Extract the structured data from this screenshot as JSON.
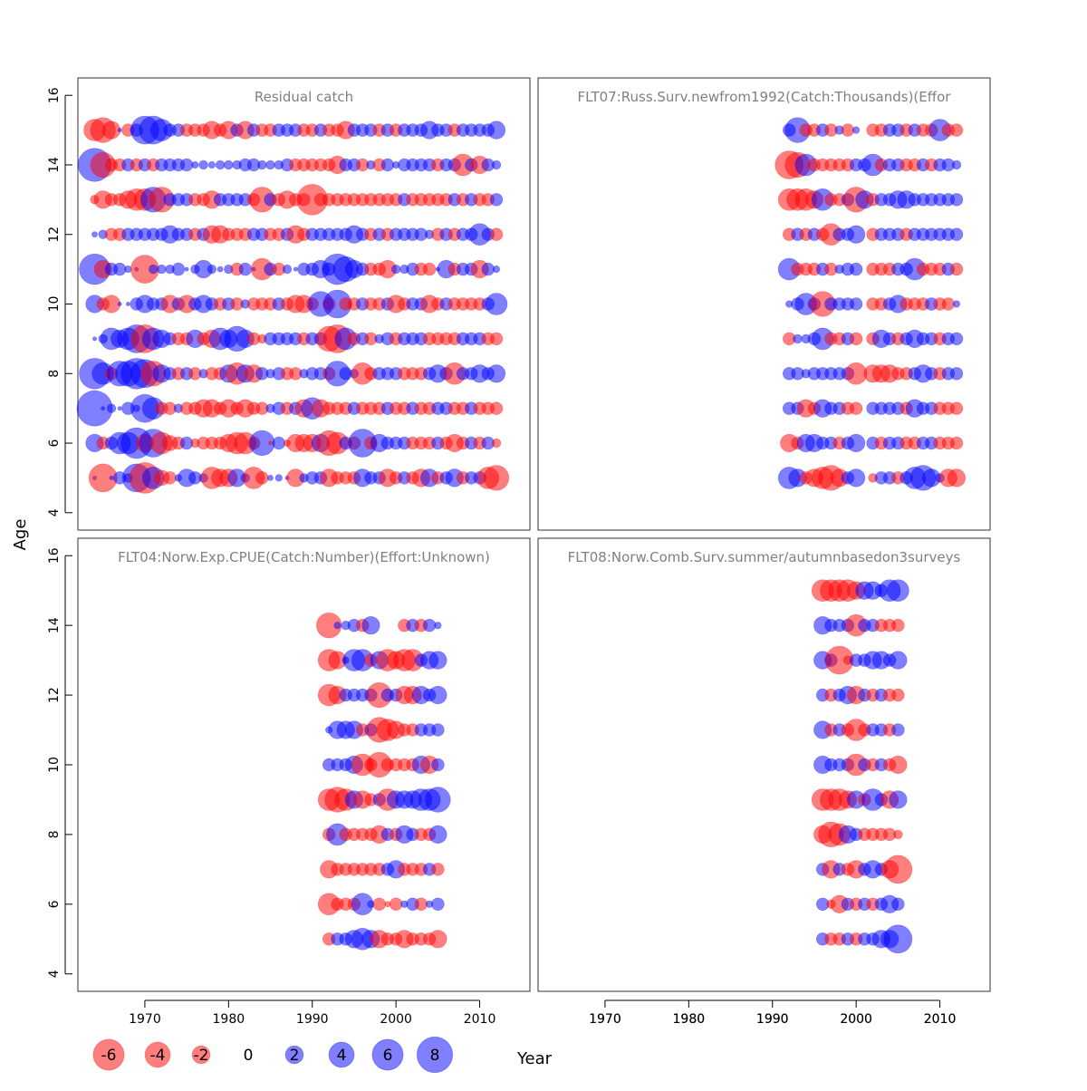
{
  "figure": {
    "ylabel": "Age",
    "xlabel": "Year",
    "colors": {
      "positive": "#0000ff",
      "negative": "#ff0000",
      "bubble_alpha": 0.5,
      "panel_title": "#808080"
    }
  },
  "legend": {
    "items": [
      {
        "label": "-6",
        "value": -6
      },
      {
        "label": "-4",
        "value": -4
      },
      {
        "label": "-2",
        "value": -2
      },
      {
        "label": "0",
        "value": 0
      },
      {
        "label": "2",
        "value": 2
      },
      {
        "label": "4",
        "value": 4
      },
      {
        "label": "6",
        "value": 6
      },
      {
        "label": "8",
        "value": 8
      }
    ]
  },
  "chart_data": [
    {
      "type": "scatter",
      "title": "Residual catch",
      "xlabel": "Year",
      "ylabel": "Age",
      "xlim": [
        1962,
        2016
      ],
      "ylim": [
        3.5,
        16.5
      ],
      "xticks": [],
      "yticks": [
        "4",
        "6",
        "8",
        "10",
        "12",
        "14",
        "16"
      ],
      "years": [
        1964,
        1965,
        1966,
        1967,
        1968,
        1969,
        1970,
        1971,
        1972,
        1973,
        1974,
        1975,
        1976,
        1977,
        1978,
        1979,
        1980,
        1981,
        1982,
        1983,
        1984,
        1985,
        1986,
        1987,
        1988,
        1989,
        1990,
        1991,
        1992,
        1993,
        1994,
        1995,
        1996,
        1997,
        1998,
        1999,
        2000,
        2001,
        2002,
        2003,
        2004,
        2005,
        2006,
        2007,
        2008,
        2009,
        2010,
        2011,
        2012
      ],
      "ages": [
        5,
        6,
        7,
        8,
        9,
        10,
        11,
        12,
        13,
        14,
        15
      ],
      "residuals": [
        [
          0.1,
          -5,
          0.1,
          1,
          0.5,
          5,
          -6,
          3,
          -1.5,
          -1,
          0.3,
          2,
          1,
          0.5,
          -3,
          -2,
          -2,
          2,
          0.5,
          -3,
          -1,
          0.2,
          0.3,
          0.1,
          -2,
          0.5,
          1,
          1,
          -2,
          -1,
          -1,
          -1,
          2,
          1,
          1,
          -2,
          -1,
          1,
          -1,
          -2,
          2,
          -1,
          1,
          2,
          -1,
          1,
          1,
          -3,
          -4
        ],
        [
          2,
          -1,
          1,
          3,
          3,
          6,
          -2,
          5,
          -3,
          -1.5,
          -1,
          1,
          -0.5,
          -1,
          -1,
          -1,
          -2,
          -3,
          -3,
          -1,
          4,
          -0.1,
          1,
          -0.3,
          -2,
          -2,
          -2,
          2,
          -4,
          -3,
          1,
          -1,
          5,
          -1,
          2,
          1,
          1,
          1,
          -1,
          -1,
          -1,
          1,
          -1,
          -2,
          -1,
          1,
          -1,
          1,
          -0.5
        ],
        [
          8,
          0.1,
          0.5,
          0.1,
          1,
          0.3,
          5,
          3,
          -1,
          -1,
          0.5,
          -1,
          -1,
          -2,
          -2,
          -1,
          -2,
          -1,
          -2,
          -1,
          -1,
          0.5,
          1,
          -1,
          1,
          -2,
          3,
          -2,
          -1,
          -1,
          -1,
          1,
          -1,
          -1,
          -1,
          1,
          -1,
          -1,
          1,
          -1,
          -1,
          1,
          1,
          -1,
          -1,
          1,
          -1,
          -1,
          -1
        ],
        [
          6,
          3,
          -1,
          4,
          4,
          6,
          5,
          -4,
          2,
          1,
          -1,
          1,
          -1,
          0.5,
          -1,
          -1,
          2,
          -3,
          2,
          -2,
          1,
          0.5,
          1,
          -1,
          -1,
          0.5,
          1,
          1,
          -1,
          4,
          1,
          0.5,
          -3,
          -1,
          1,
          1,
          1,
          -1,
          -1,
          -1,
          1,
          2,
          1,
          -3,
          1,
          1,
          2,
          1,
          2
        ],
        [
          0.1,
          0.5,
          3,
          2,
          3,
          5,
          -5,
          3,
          2,
          1,
          -1,
          -1,
          2,
          -1,
          -2,
          3,
          2,
          4,
          2,
          -1,
          -0.5,
          1,
          1,
          1,
          1,
          -1,
          1,
          1,
          -4,
          -5,
          3,
          -1,
          1,
          -1,
          0.5,
          1,
          -1,
          1,
          1,
          1,
          -1,
          -1,
          -1,
          -1,
          1,
          1,
          1,
          -1,
          -1
        ],
        [
          2,
          -1,
          -2,
          0.1,
          0.1,
          1,
          2,
          1,
          1,
          -2,
          1,
          -2,
          1,
          2,
          1,
          -1,
          1,
          -1,
          0.5,
          -1,
          -1,
          -1,
          1,
          -1,
          -2,
          -2,
          -1,
          4,
          -1,
          5,
          -1,
          -1,
          1,
          -1,
          -1,
          1,
          -2,
          -1,
          1,
          1,
          -2,
          -1,
          1,
          -1,
          -1,
          -1,
          -1,
          1,
          3
        ],
        [
          6,
          -2,
          1,
          1,
          0.3,
          0.1,
          -5,
          0.5,
          0.5,
          0.5,
          1,
          0.1,
          0.5,
          2,
          0.5,
          0.2,
          0.5,
          -1,
          1,
          0.1,
          -3,
          1,
          -1,
          0.5,
          0.1,
          1,
          1,
          2,
          1,
          6,
          4,
          2,
          1,
          -1,
          -1,
          -2,
          0.5,
          0.5,
          1,
          -1,
          -1,
          0.1,
          2,
          -1,
          1,
          1,
          -2,
          1,
          0.3
        ],
        [
          0.2,
          0.5,
          -1,
          -1,
          1,
          1,
          1,
          1,
          1,
          2,
          1,
          1,
          -1,
          1,
          -2,
          -2,
          -1,
          -1,
          -1,
          1,
          1,
          -1,
          -1,
          1,
          -2,
          -1,
          1,
          1,
          1,
          1,
          1,
          2,
          1,
          -1,
          1,
          -1,
          1,
          1,
          1,
          1,
          0.5,
          -1,
          1,
          -1,
          1,
          1,
          3,
          1,
          -1
        ],
        [
          -0.5,
          -2,
          -1,
          -1,
          -2,
          -3,
          -3,
          4,
          -4,
          1,
          1,
          1,
          -1,
          -1,
          -2,
          1,
          1,
          1,
          1,
          -1,
          -4,
          1,
          -1,
          -2,
          -1,
          -1,
          -6,
          -1,
          -1,
          -1,
          -1,
          -1,
          -1,
          -1,
          -1,
          -1,
          -1,
          1,
          -1,
          -1,
          -1,
          -1,
          -1,
          1,
          -1,
          1,
          -1,
          -1,
          1
        ],
        [
          7,
          -4,
          -1,
          -1,
          1,
          -1,
          1,
          -1,
          1,
          1,
          1,
          1,
          0.3,
          0.5,
          0.3,
          0.5,
          0.5,
          0.5,
          1,
          1,
          0.5,
          0.5,
          0.5,
          1,
          -1,
          -1,
          -1,
          -1,
          -1,
          -2,
          1,
          1,
          -1,
          0.5,
          -1,
          1,
          0.3,
          1,
          1,
          1,
          1,
          -1,
          1,
          1,
          -3,
          1,
          -2,
          1,
          0.5
        ],
        [
          -3,
          -4,
          -2,
          0.1,
          -1,
          1,
          5,
          5,
          3,
          1,
          1,
          -1,
          -1,
          -1,
          -2,
          -1,
          -2,
          1,
          -2,
          1,
          -1,
          -1,
          1,
          1,
          1,
          -1,
          -1,
          1,
          -1,
          -1,
          -2,
          1,
          1,
          1,
          -1,
          1,
          -1,
          1,
          1,
          1,
          2,
          1,
          1,
          -1,
          1,
          1,
          1,
          1,
          2
        ]
      ]
    },
    {
      "type": "scatter",
      "title": "FLT07:Russ.Surv.newfrom1992(Catch:Thousands)(Effor",
      "xlabel": "Year",
      "ylabel": "Age",
      "xlim": [
        1962,
        2016
      ],
      "ylim": [
        3.5,
        16.5
      ],
      "xticks": [
        "1970",
        "1980",
        "1990",
        "2000",
        "2010"
      ],
      "yticks": [],
      "years": [
        1992,
        1993,
        1994,
        1995,
        1996,
        1997,
        1998,
        1999,
        2000,
        2001,
        2002,
        2003,
        2004,
        2005,
        2006,
        2007,
        2008,
        2009,
        2010,
        2011,
        2012
      ],
      "ages": [
        5,
        6,
        7,
        8,
        9,
        10,
        11,
        12,
        13,
        14,
        15
      ],
      "residuals": [
        [
          3,
          2,
          -1,
          -2,
          -3,
          -4,
          -2,
          1,
          2,
          null,
          -0.5,
          1,
          1,
          -1,
          1,
          3,
          4,
          2,
          0.5,
          -2,
          -2
        ],
        [
          -2,
          -1,
          2,
          2,
          1,
          1,
          -1,
          1,
          2,
          null,
          1,
          -1,
          1,
          1,
          -1,
          -1,
          1,
          1,
          -1,
          -1,
          -1
        ],
        [
          1,
          1,
          -2,
          -1,
          2,
          1,
          1,
          -1,
          -1,
          null,
          1,
          1,
          1,
          1,
          -1,
          2,
          1,
          1,
          -1,
          -1,
          -1
        ],
        [
          1,
          1,
          0.5,
          1,
          1,
          1,
          1,
          1,
          -3,
          null,
          -2,
          -2,
          -2,
          -1,
          -1,
          1,
          2,
          1,
          -1,
          1,
          1
        ],
        [
          -1,
          0.5,
          0.5,
          1,
          3,
          -1,
          -1,
          1,
          -1,
          null,
          -1,
          2,
          1,
          -1,
          1,
          2,
          1,
          1,
          -1,
          1,
          1
        ],
        [
          0.3,
          1,
          3,
          1,
          -4,
          1,
          1,
          1,
          1,
          null,
          -1,
          -1,
          1,
          2,
          -1,
          -1,
          -1,
          1,
          -1,
          -1,
          0.3
        ],
        [
          3,
          -1,
          -1,
          -1,
          1,
          -1,
          0.5,
          1,
          1,
          null,
          -1,
          -1,
          -1,
          1,
          1,
          3,
          -1,
          -1,
          -1,
          1,
          -1
        ],
        [
          -1,
          1,
          -1,
          1,
          -1,
          -3,
          1,
          1,
          2,
          null,
          -1,
          1,
          1,
          1,
          -1,
          1,
          1,
          1,
          1,
          1,
          1
        ],
        [
          -3,
          -3,
          -3,
          -2,
          3,
          -1,
          -1,
          1,
          -4,
          2,
          -1,
          1,
          1,
          2,
          2,
          1,
          1,
          1,
          1,
          1,
          1
        ],
        [
          -5,
          -4,
          3,
          -1,
          -1,
          -1,
          -1,
          -1,
          1,
          1,
          3,
          -1,
          1,
          1,
          -1,
          -1,
          1,
          -1,
          1,
          1,
          0.5
        ],
        [
          1,
          4,
          -1,
          -1,
          1,
          -1,
          0.5,
          -1,
          0.3,
          null,
          -1,
          -1,
          1,
          1,
          -1,
          1,
          -1,
          -1,
          3,
          -1,
          -1
        ]
      ]
    },
    {
      "type": "scatter",
      "title": "FLT04:Norw.Exp.CPUE(Catch:Number)(Effort:Unknown)",
      "xlabel": "Year",
      "ylabel": "Age",
      "xlim": [
        1962,
        2016
      ],
      "ylim": [
        3.5,
        16.5
      ],
      "xticks": [
        "1970",
        "1980",
        "1990",
        "2000",
        "2010"
      ],
      "yticks": [
        "4",
        "6",
        "8",
        "10",
        "12",
        "14",
        "16"
      ],
      "years": [
        1992,
        1993,
        1994,
        1995,
        1996,
        1997,
        1998,
        1999,
        2000,
        2001,
        2002,
        2003,
        2004,
        2005
      ],
      "ages": [
        5,
        6,
        7,
        8,
        9,
        10,
        11,
        12,
        13,
        14
      ],
      "residuals": [
        [
          -1,
          1,
          1,
          2,
          3,
          2,
          -2,
          -1,
          -1,
          -2,
          -1,
          -1,
          -1,
          -2
        ],
        [
          -3,
          -1,
          -1,
          -1,
          3,
          0.3,
          -1,
          -0.2,
          -1,
          0.3,
          1,
          -1,
          0.3,
          1
        ],
        [
          -2,
          -1,
          -1,
          -1,
          -1,
          -1,
          -1,
          1,
          2,
          -1,
          -1,
          -1,
          1,
          -1
        ],
        [
          -1,
          3,
          -1,
          -1,
          -1,
          -1,
          -2,
          1,
          -1,
          2,
          1,
          -1,
          -1,
          2
        ],
        [
          -3,
          -4,
          -3,
          2,
          -2,
          -1,
          1,
          -3,
          2,
          2,
          2,
          3,
          3,
          4
        ],
        [
          1,
          1,
          1,
          2,
          -3,
          -1,
          -4,
          -1,
          -1,
          -1,
          -1,
          2,
          -2,
          1
        ],
        [
          0.3,
          2,
          2,
          2,
          -1,
          1,
          -4,
          -3,
          -2,
          -1,
          -1,
          1,
          1,
          1
        ],
        [
          -3,
          -2,
          1,
          1,
          1,
          1,
          -4,
          1,
          1,
          -2,
          -2,
          2,
          1,
          2
        ],
        [
          -3,
          -2,
          0.3,
          3,
          3,
          -1,
          2,
          -3,
          -2,
          -3,
          -3,
          1,
          2,
          2
        ],
        [
          -4,
          0.3,
          0.5,
          1,
          -1,
          2,
          null,
          null,
          null,
          -1,
          1,
          -1,
          1,
          0.3
        ]
      ]
    },
    {
      "type": "scatter",
      "title": "FLT08:Norw.Comb.Surv.summer/autumnbasedon3surveys",
      "xlabel": "Year",
      "ylabel": "Age",
      "xlim": [
        1962,
        2016
      ],
      "ylim": [
        3.5,
        16.5
      ],
      "xticks": [
        "1970",
        "1980",
        "1990",
        "2000",
        "2010"
      ],
      "yticks": [],
      "years": [
        1996,
        1997,
        1998,
        1999,
        2000,
        2001,
        2002,
        2003,
        2004,
        2005
      ],
      "ages": [
        5,
        6,
        7,
        8,
        9,
        10,
        11,
        12,
        13,
        14,
        15
      ],
      "residuals": [
        [
          1,
          -1,
          -1,
          1,
          -1,
          1,
          1,
          2,
          2,
          5
        ],
        [
          1,
          -0.5,
          -2,
          1,
          -1,
          1,
          -1,
          1,
          2,
          1
        ],
        [
          1,
          -2,
          1,
          -1,
          -2,
          1,
          2,
          1,
          -2,
          -5
        ],
        [
          -2,
          -4,
          -3,
          2,
          1,
          -1,
          -1,
          -1,
          -1,
          -0.5
        ],
        [
          -3,
          -3,
          -3,
          -2,
          2,
          -1,
          3,
          1,
          -2,
          2
        ],
        [
          2,
          1,
          1,
          1,
          -3,
          1,
          -1,
          1,
          -1,
          -2
        ],
        [
          2,
          -1,
          1,
          -1,
          -3,
          -1,
          1,
          1,
          -1,
          1
        ],
        [
          1,
          -1,
          1,
          2,
          -2,
          1,
          -1,
          1,
          -1,
          -1
        ],
        [
          2,
          1,
          -5,
          -0.5,
          1,
          1,
          2,
          2,
          1,
          2
        ],
        [
          2,
          1,
          1,
          1,
          -3,
          1,
          1,
          -1,
          -1,
          -1
        ],
        [
          -3,
          -3,
          -3,
          -3,
          -2,
          2,
          2,
          1,
          3,
          3
        ]
      ]
    }
  ]
}
